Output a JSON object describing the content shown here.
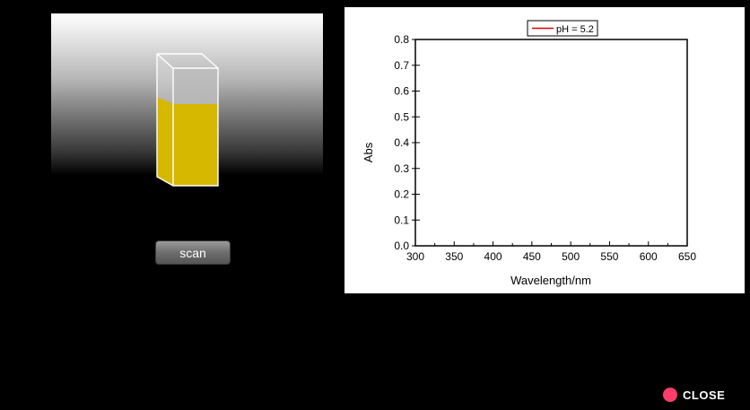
{
  "scan_button": {
    "label": "scan"
  },
  "close_button": {
    "label": "CLOSE",
    "icon": "close-dot-icon"
  },
  "colors": {
    "solution": "#d6b800",
    "series_line": "#e00000",
    "close_dot": "#ff3d6a"
  },
  "chart_data": {
    "type": "line",
    "title": "",
    "xlabel": "Wavelength/nm",
    "ylabel": "Abs",
    "xlim": [
      300,
      650
    ],
    "ylim": [
      0.0,
      0.8
    ],
    "xticks": [
      "300",
      "350",
      "400",
      "450",
      "500",
      "550",
      "600",
      "650"
    ],
    "yticks": [
      "0.0",
      "0.1",
      "0.2",
      "0.3",
      "0.4",
      "0.5",
      "0.6",
      "0.7",
      "0.8"
    ],
    "legend": {
      "position": "top-center",
      "entries": [
        "pH = 5.2"
      ]
    },
    "grid": false,
    "series": [
      {
        "name": "pH = 5.2",
        "x": [],
        "y": []
      }
    ]
  }
}
